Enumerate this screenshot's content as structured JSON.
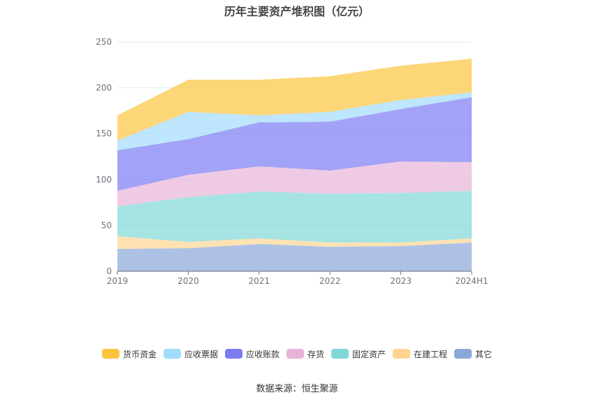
{
  "source": "数据来源：恒生聚源",
  "chart_data": {
    "type": "area",
    "stacked": true,
    "title": "历年主要资产堆积图（亿元）",
    "categories": [
      "2019",
      "2020",
      "2021",
      "2022",
      "2023",
      "2024H1"
    ],
    "ylim": [
      0,
      250
    ],
    "yticks": [
      0,
      50,
      100,
      150,
      200,
      250
    ],
    "grid": "horizontal",
    "legend_position": "bottom",
    "series": [
      {
        "name": "货币资金",
        "color": "#fcc43e",
        "values": [
          27.5,
          35.0,
          38.8,
          38.9,
          37.4,
          36.6
        ]
      },
      {
        "name": "应收票据",
        "color": "#a2dcfb",
        "values": [
          10.6,
          29.7,
          7.7,
          10.7,
          9.9,
          5.3
        ]
      },
      {
        "name": "应收账款",
        "color": "#7b7cf2",
        "values": [
          44.2,
          38.9,
          48.0,
          53.3,
          57.1,
          70.9
        ]
      },
      {
        "name": "存货",
        "color": "#e8b3d8",
        "values": [
          16.8,
          24.4,
          27.4,
          25.2,
          34.3,
          31.2
        ]
      },
      {
        "name": "固定资产",
        "color": "#7fd8d6",
        "values": [
          32.8,
          48.8,
          51.1,
          53.3,
          54.1,
          51.9
        ]
      },
      {
        "name": "在建工程",
        "color": "#ffd590",
        "values": [
          13.7,
          6.8,
          6.1,
          4.6,
          3.9,
          4.5
        ]
      },
      {
        "name": "其它",
        "color": "#8aa7da",
        "values": [
          24.4,
          25.2,
          29.7,
          26.7,
          27.4,
          31.3
        ]
      }
    ]
  }
}
